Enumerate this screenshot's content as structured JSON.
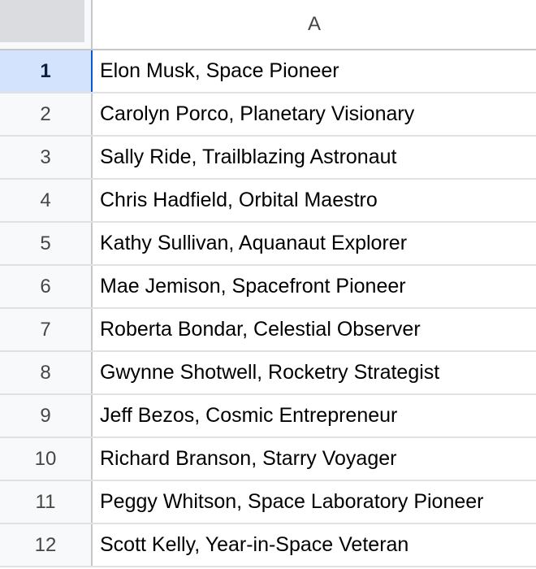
{
  "sheet": {
    "column_header": "A",
    "selected_row": "1",
    "colors": {
      "header_bg": "#f8f9fa",
      "selected_row_bg": "#d3e3fd",
      "gridline": "#e1e1e1"
    },
    "rows": [
      {
        "number": "1",
        "value": "Elon Musk, Space Pioneer"
      },
      {
        "number": "2",
        "value": "Carolyn Porco, Planetary Visionary"
      },
      {
        "number": "3",
        "value": "Sally Ride, Trailblazing Astronaut"
      },
      {
        "number": "4",
        "value": "Chris Hadfield, Orbital Maestro"
      },
      {
        "number": "5",
        "value": "Kathy Sullivan, Aquanaut Explorer"
      },
      {
        "number": "6",
        "value": "Mae Jemison, Spacefront Pioneer"
      },
      {
        "number": "7",
        "value": "Roberta Bondar, Celestial Observer"
      },
      {
        "number": "8",
        "value": "Gwynne Shotwell, Rocketry Strategist"
      },
      {
        "number": "9",
        "value": "Jeff Bezos, Cosmic Entrepreneur"
      },
      {
        "number": "10",
        "value": "Richard Branson, Starry Voyager"
      },
      {
        "number": "11",
        "value": "Peggy Whitson, Space Laboratory Pioneer"
      },
      {
        "number": "12",
        "value": "Scott Kelly, Year-in-Space Veteran"
      }
    ]
  }
}
